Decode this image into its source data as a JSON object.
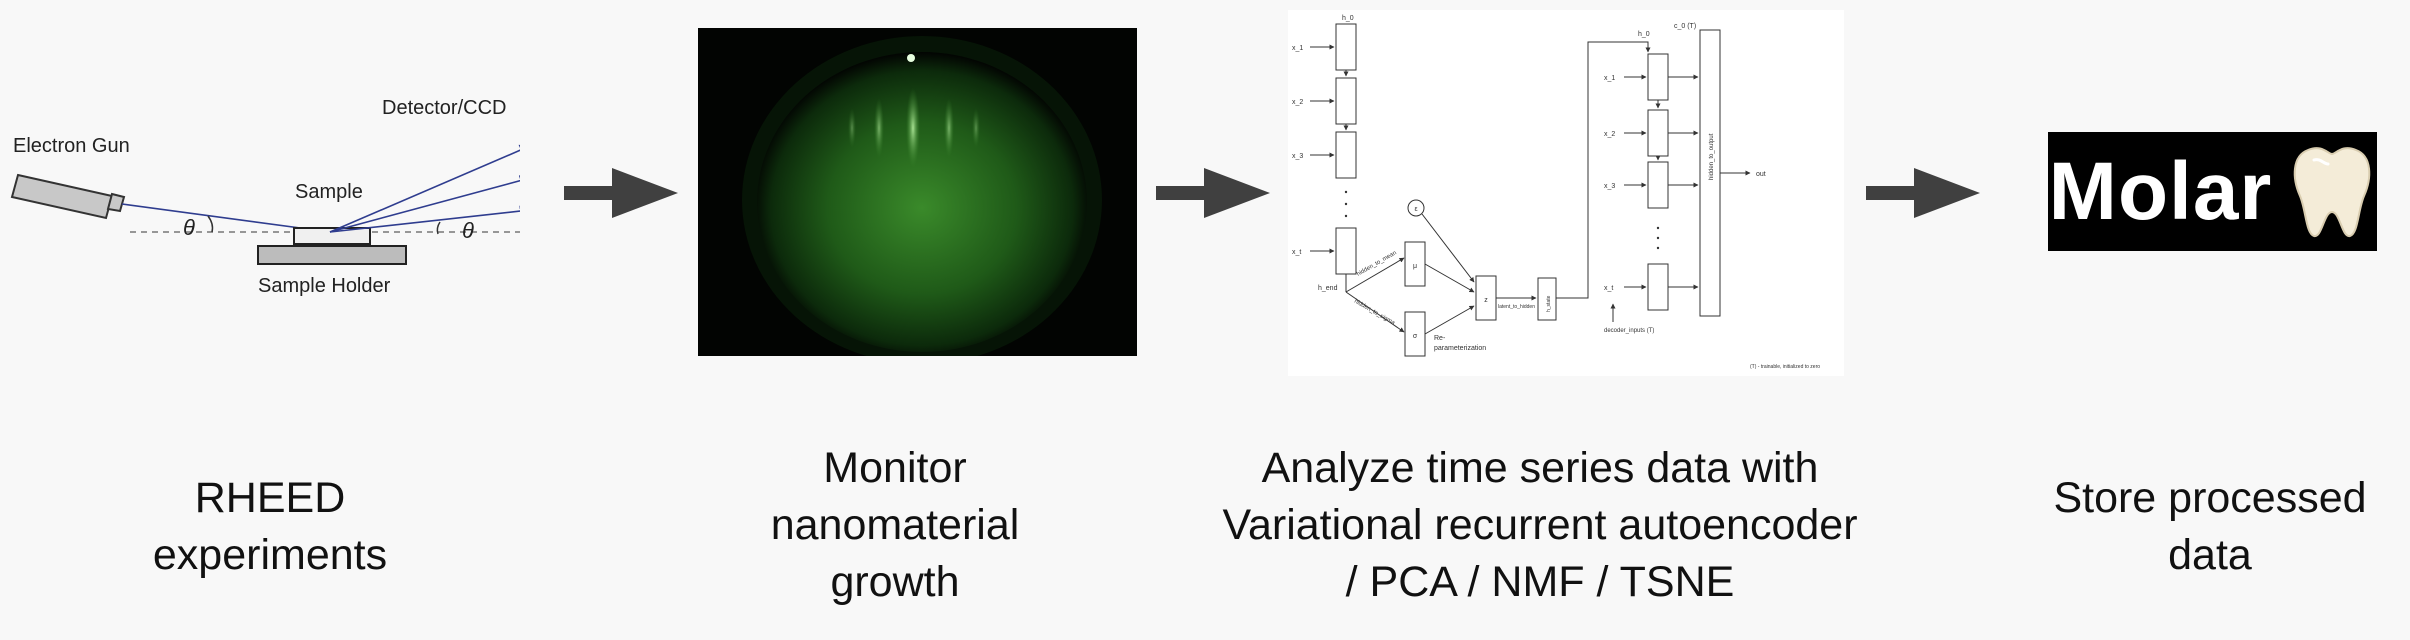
{
  "rheed_setup": {
    "electron_gun": "Electron Gun",
    "detector": "Detector/CCD",
    "sample": "Sample",
    "sample_holder": "Sample Holder",
    "theta_left": "θ",
    "theta_right": "θ"
  },
  "vrae": {
    "x_1": "x_1",
    "x_2": "x_2",
    "x_3": "x_3",
    "x_t": "x_t",
    "h_0": "h_0",
    "h_end": "h_end",
    "hidden_to_mean": "hidden_to_mean",
    "hidden_to_sigma": "hidden_to_sigma",
    "mu": "μ",
    "sigma": "σ",
    "epsilon": "ε",
    "z": "z",
    "reparam_1": "Re-",
    "reparam_2": "parameterization",
    "latent_to_hidden": "latent_to_hidden",
    "h_state": "h_state",
    "c_0": "c_0 (T)",
    "dec_h_0": "h_0",
    "dec_x_1": "x_1",
    "dec_x_2": "x_2",
    "dec_x_3": "x_3",
    "dec_x_t": "x_t",
    "hidden_to_output": "hidden_to_output",
    "out": "out",
    "decoder_inputs": "decoder_inputs (T)",
    "footnote": "(T) - trainable, initialized to zero"
  },
  "logo": {
    "text": "Molar",
    "icon": "tooth-icon"
  },
  "captions": {
    "step1": "RHEED\nexperiments",
    "step2": "Monitor\nnanomaterial\ngrowth",
    "step3": "Analyze time series data with\nVariational recurrent autoencoder\n/ PCA / NMF / TSNE",
    "step4": "Store processed\ndata"
  },
  "colors": {
    "arrow": "#404040",
    "beam": "#2f3d8f",
    "rheed_green": "#3a8a2a",
    "background": "#f8f8f8"
  }
}
